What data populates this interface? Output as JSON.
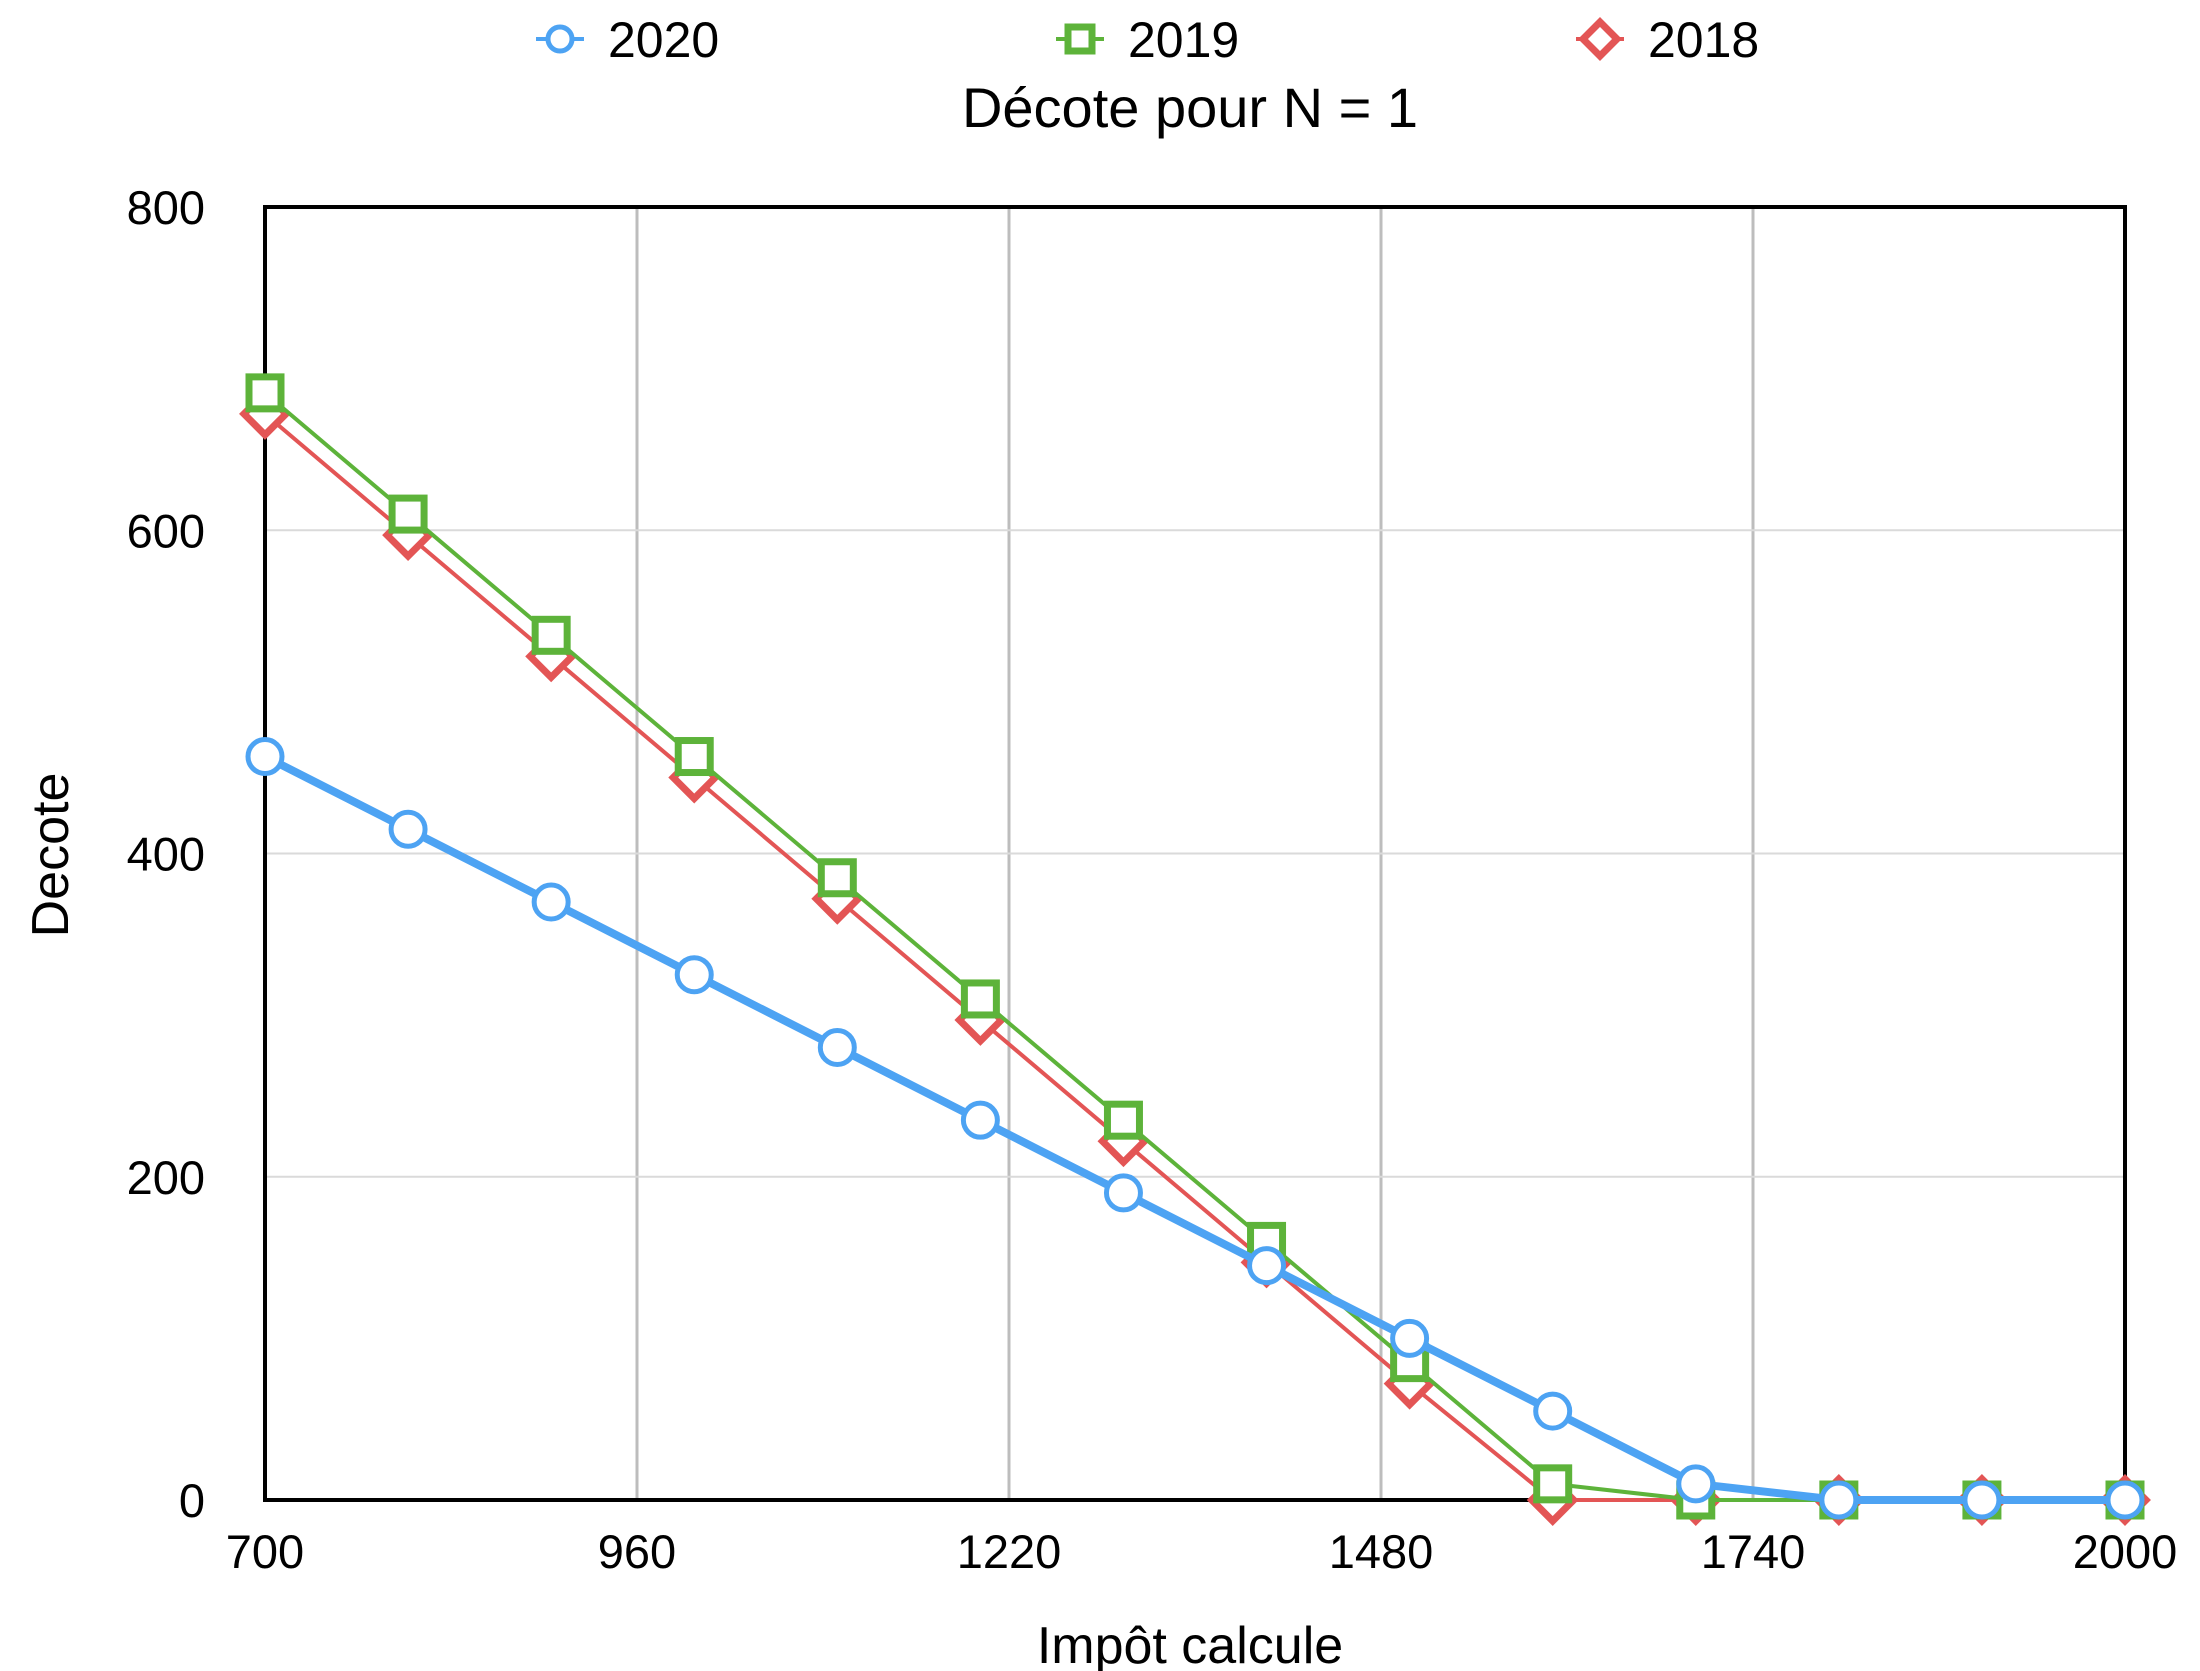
{
  "chart_data": {
    "type": "line",
    "title": "Décote pour N = 1",
    "xlabel": "Impôt calcule",
    "ylabel": "Decote",
    "xlim": [
      700,
      2000
    ],
    "ylim": [
      0,
      800
    ],
    "xticks": [
      700,
      960,
      1220,
      1480,
      1740,
      2000
    ],
    "yticks": [
      0,
      200,
      400,
      600,
      800
    ],
    "xtick_labels": [
      "700",
      "960",
      "1220",
      "1480",
      "1740",
      "2000"
    ],
    "ytick_labels": [
      "0",
      "200",
      "400",
      "600",
      "800"
    ],
    "grid": {
      "vertical": true,
      "horizontal": true
    },
    "legend_position": "top",
    "x": [
      700,
      800,
      900,
      1000,
      1100,
      1200,
      1300,
      1400,
      1500,
      1600,
      1700,
      1800,
      1900,
      2000
    ],
    "series": [
      {
        "name": "2020",
        "color": "#4da3f3",
        "marker": "circle",
        "values": [
          460,
          415,
          370,
          325,
          280,
          235,
          190,
          145,
          100,
          55,
          10,
          0,
          0,
          0
        ]
      },
      {
        "name": "2019",
        "color": "#5db33a",
        "marker": "square",
        "values": [
          685,
          610,
          535,
          460,
          385,
          310,
          235,
          160,
          85,
          10,
          0,
          0,
          0,
          0
        ]
      },
      {
        "name": "2018",
        "color": "#e35555",
        "marker": "diamond",
        "values": [
          672,
          597,
          522,
          447,
          372,
          297,
          222,
          147,
          72,
          0,
          0,
          0,
          0,
          0
        ]
      }
    ]
  }
}
